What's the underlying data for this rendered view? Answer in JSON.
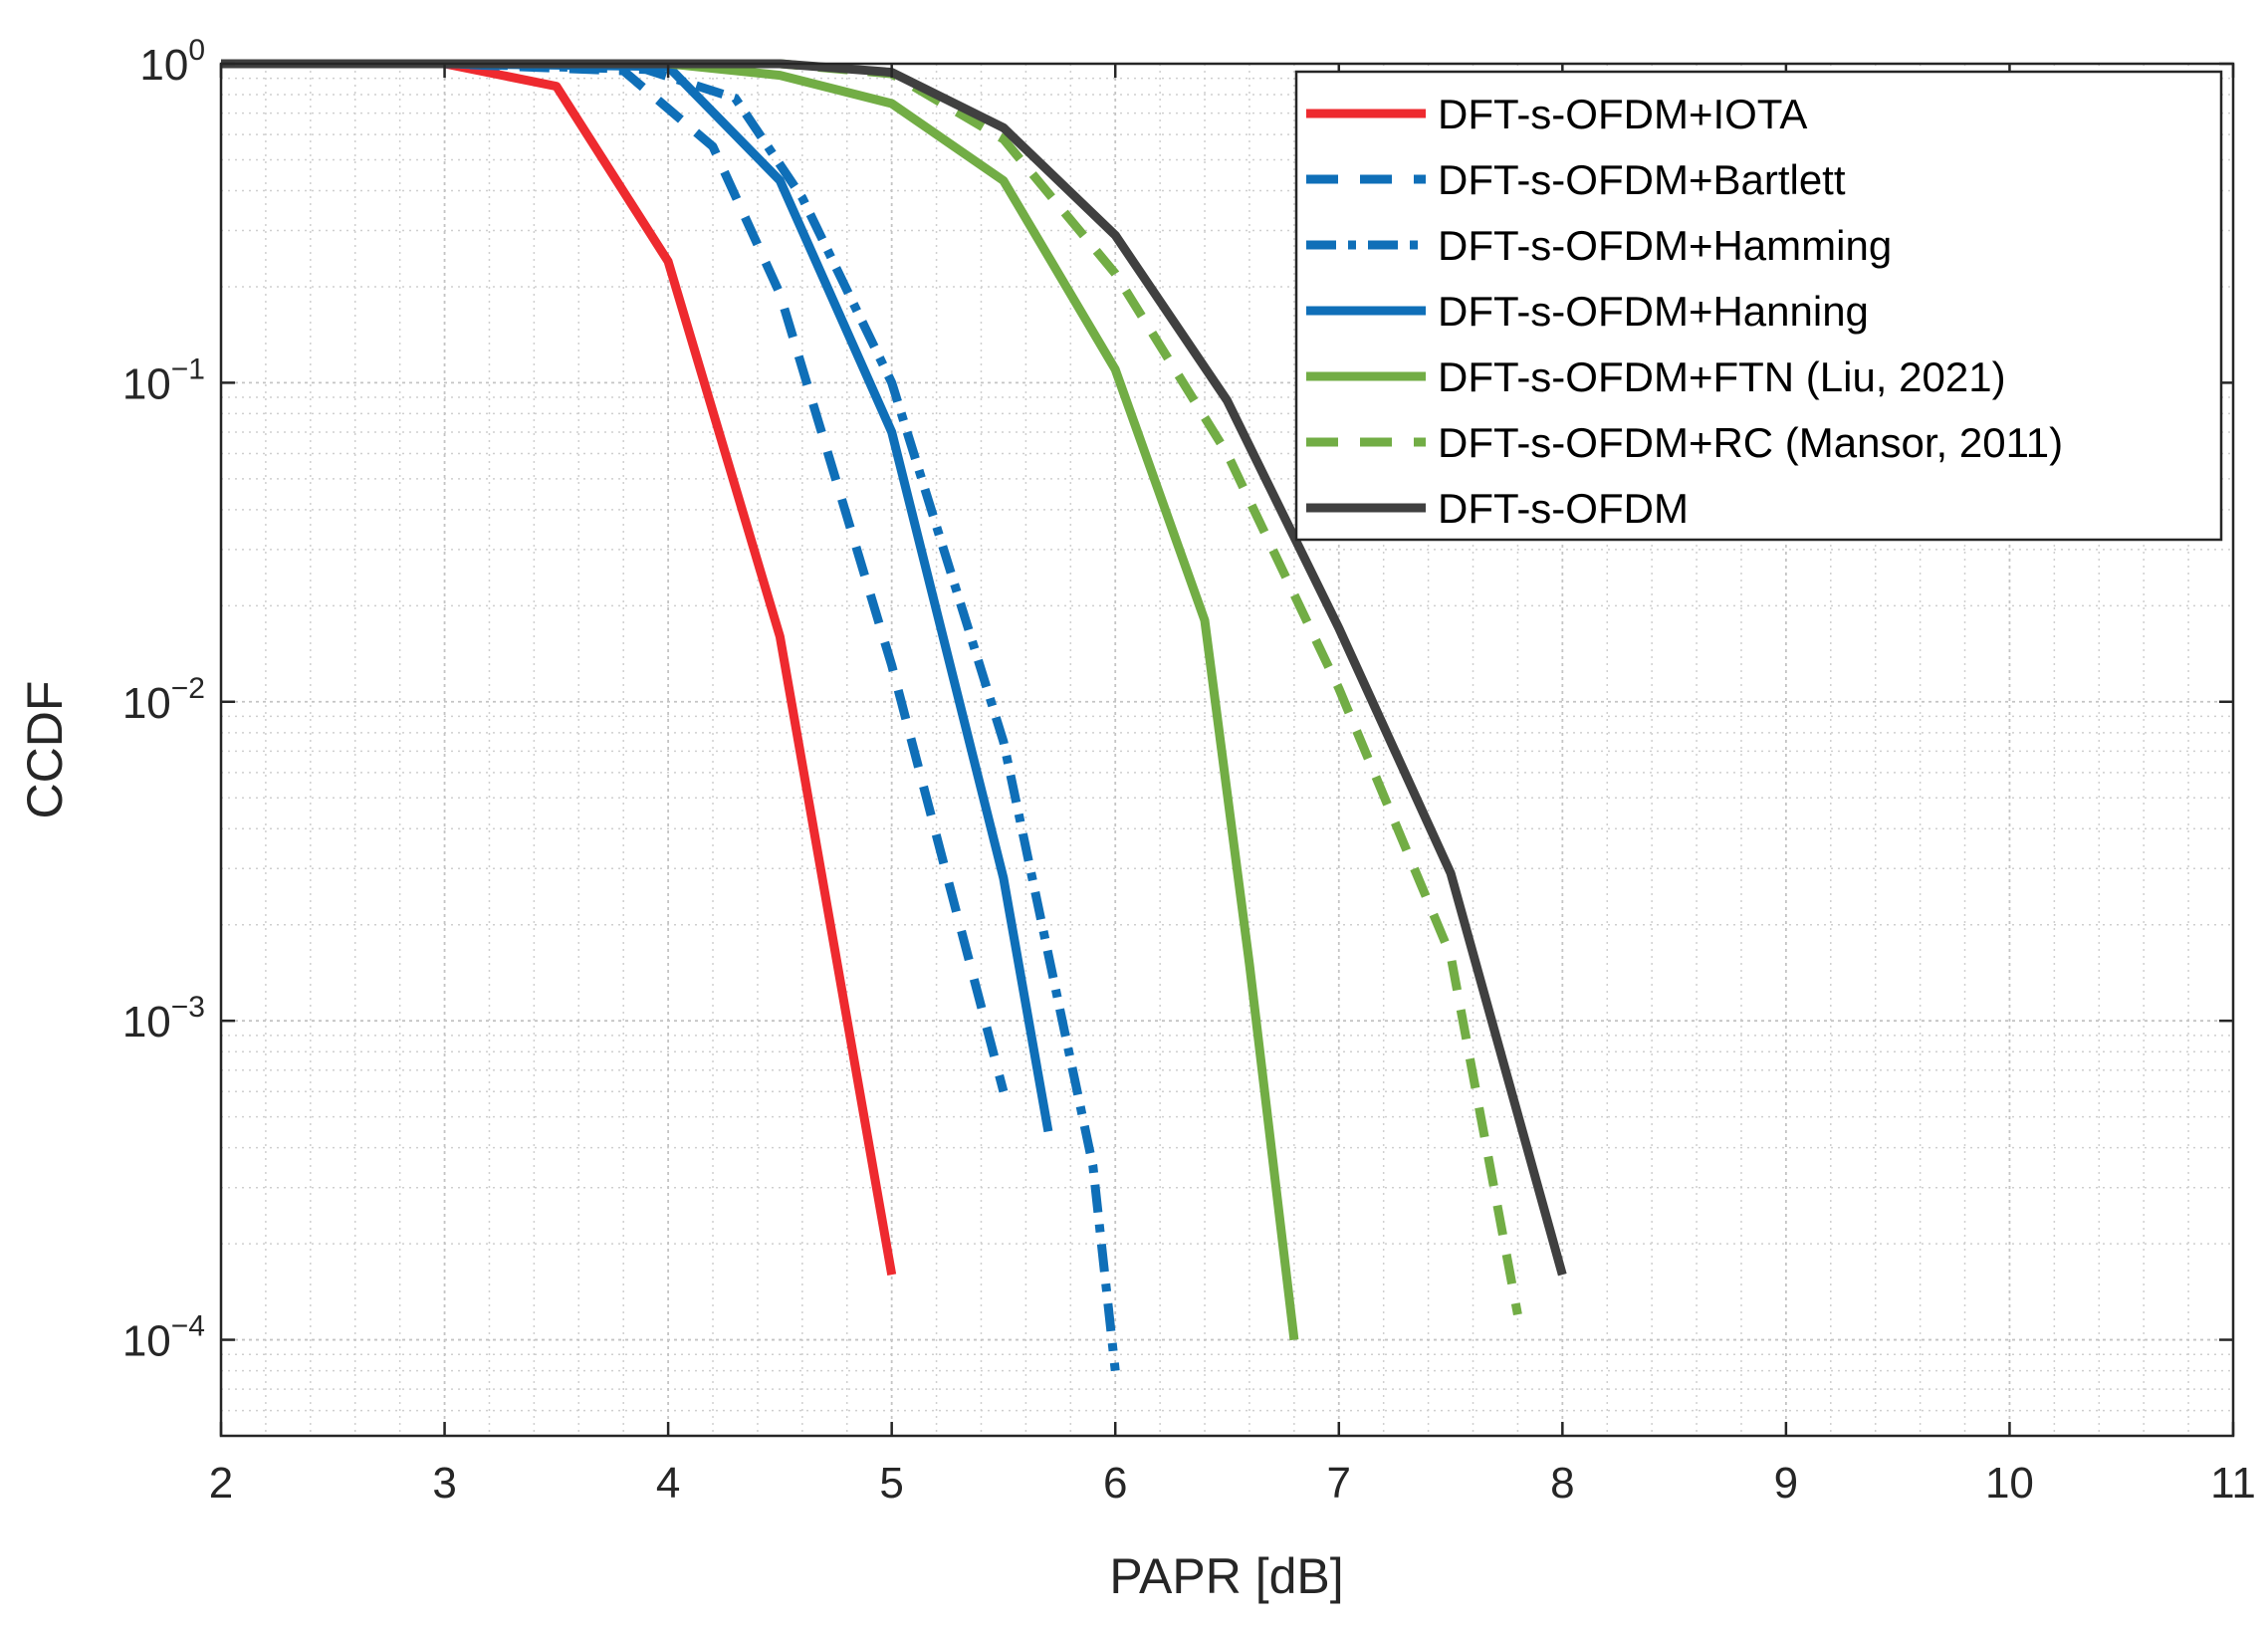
{
  "chart_data": {
    "type": "line",
    "title": "",
    "xlabel": "PAPR [dB]",
    "ylabel": "CCDF",
    "xlim": [
      2,
      11
    ],
    "ylim": [
      5e-05,
      1
    ],
    "yscale": "log",
    "grid": true,
    "legend_position": "top-right",
    "x_ticks": [
      2,
      3,
      4,
      5,
      6,
      7,
      8,
      9,
      10,
      11
    ],
    "y_ticks": [
      {
        "value": 1,
        "base": "10",
        "exp": "0"
      },
      {
        "value": 0.1,
        "base": "10",
        "exp": "−1"
      },
      {
        "value": 0.01,
        "base": "10",
        "exp": "−2"
      },
      {
        "value": 0.001,
        "base": "10",
        "exp": "−3"
      },
      {
        "value": 0.0001,
        "base": "10",
        "exp": "−4"
      }
    ],
    "series": [
      {
        "name": "DFT-s-OFDM+IOTA",
        "color": "#ee2a2f",
        "dash": "solid",
        "x": [
          2,
          3,
          3.5,
          4,
          4.5,
          5
        ],
        "y": [
          1,
          1,
          0.85,
          0.24,
          0.016,
          0.00016
        ]
      },
      {
        "name": "DFT-s-OFDM+Bartlett",
        "color": "#0f6fb8",
        "dash": "dash",
        "x": [
          2,
          3,
          3.8,
          4.2,
          4.5,
          5,
          5.5
        ],
        "y": [
          1,
          1,
          0.95,
          0.55,
          0.19,
          0.013,
          0.0006
        ]
      },
      {
        "name": "DFT-s-OFDM+Hamming",
        "color": "#0f6fb8",
        "dash": "dashdot",
        "x": [
          2,
          3,
          3.9,
          4.3,
          4.6,
          5,
          5.5,
          5.9,
          6
        ],
        "y": [
          1,
          1,
          0.96,
          0.78,
          0.38,
          0.1,
          0.0075,
          0.00035,
          8e-05
        ]
      },
      {
        "name": "DFT-s-OFDM+Hanning",
        "color": "#0f6fb8",
        "dash": "solid",
        "x": [
          2,
          3,
          4,
          4.5,
          5,
          5.5,
          5.7
        ],
        "y": [
          1,
          1,
          0.98,
          0.43,
          0.07,
          0.0028,
          0.00045
        ]
      },
      {
        "name": "DFT-s-OFDM+FTN (Liu, 2021)",
        "color": "#72ad45",
        "dash": "solid",
        "x": [
          2,
          3,
          4,
          4.5,
          5,
          5.5,
          6,
          6.4,
          6.6,
          6.8
        ],
        "y": [
          1,
          1,
          1,
          0.92,
          0.75,
          0.43,
          0.11,
          0.018,
          0.0015,
          0.0001
        ]
      },
      {
        "name": "DFT-s-OFDM+RC (Mansor, 2011)",
        "color": "#72ad45",
        "dash": "dash",
        "x": [
          2,
          3,
          4,
          4.5,
          5,
          5.5,
          6,
          6.5,
          7,
          7.5,
          7.8
        ],
        "y": [
          1,
          1,
          1,
          1,
          0.93,
          0.58,
          0.22,
          0.06,
          0.011,
          0.0016,
          0.00012
        ]
      },
      {
        "name": "DFT-s-OFDM",
        "color": "#404040",
        "dash": "solid",
        "x": [
          2,
          3,
          4,
          4.5,
          5,
          5.5,
          6,
          6.5,
          7,
          7.5,
          8
        ],
        "y": [
          1,
          1,
          1,
          1,
          0.94,
          0.63,
          0.29,
          0.088,
          0.017,
          0.0029,
          0.00016
        ]
      }
    ]
  }
}
